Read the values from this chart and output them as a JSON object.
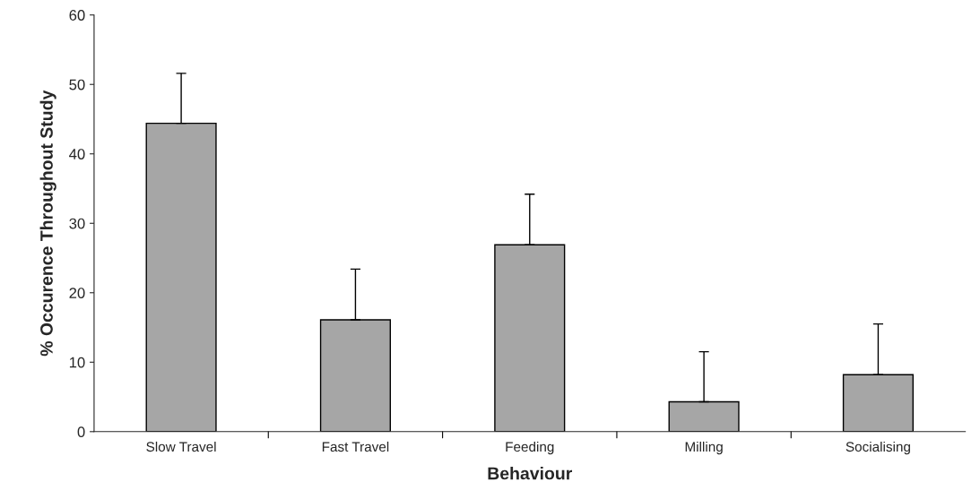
{
  "chart_data": {
    "type": "bar",
    "xlabel": "Behaviour",
    "ylabel": "% Occurence Throughout Study",
    "categories": [
      "Slow Travel",
      "Fast Travel",
      "Feeding",
      "Milling",
      "Socialising"
    ],
    "values": [
      44.4,
      16.1,
      26.9,
      4.3,
      8.2
    ],
    "errors": [
      [
        44.4,
        51.6
      ],
      [
        16.1,
        23.4
      ],
      [
        26.9,
        34.2
      ],
      [
        4.3,
        11.5
      ],
      [
        8.2,
        15.5
      ]
    ],
    "color": "#a6a6a6",
    "ylim": [
      0,
      60
    ],
    "yticks": [
      0,
      10,
      20,
      30,
      40,
      50,
      60
    ],
    "grid": false
  }
}
